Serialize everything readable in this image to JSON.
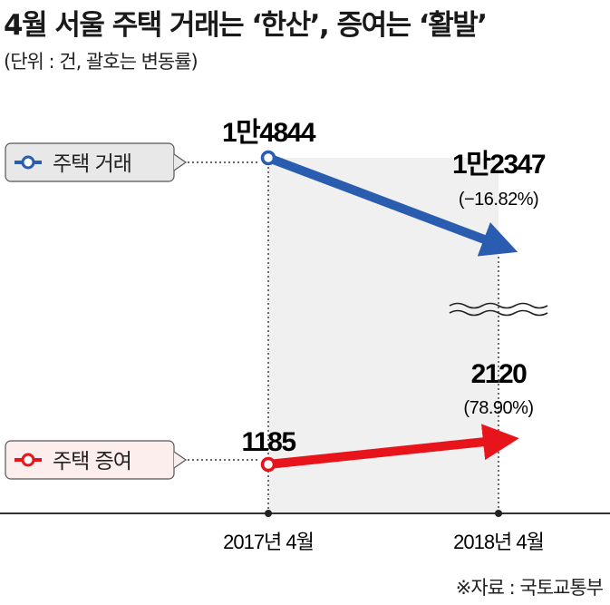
{
  "title": "4월 서울 주택 거래는 ‘한산’, 증여는 ‘활발’",
  "unit_note": "(단위 : 건, 괄호는 변동률)",
  "source": "※자료 : 국토교통부",
  "colors": {
    "transaction": "#2a5db0",
    "gift": "#e8141c",
    "shade": "#f0f0f0"
  },
  "chart_data": {
    "type": "line",
    "categories": [
      "2017년 4월",
      "2018년 4월"
    ],
    "series": [
      {
        "name": "주택 거래",
        "values": [
          14844,
          12347
        ],
        "labels": [
          "1만4844",
          "1만2347"
        ],
        "change": "(−16.82%)",
        "axis_break_below": true
      },
      {
        "name": "주택 증여",
        "values": [
          1185,
          2120
        ],
        "labels": [
          "1185",
          "2120"
        ],
        "change": "(78.90%)"
      }
    ],
    "legend": "left"
  }
}
